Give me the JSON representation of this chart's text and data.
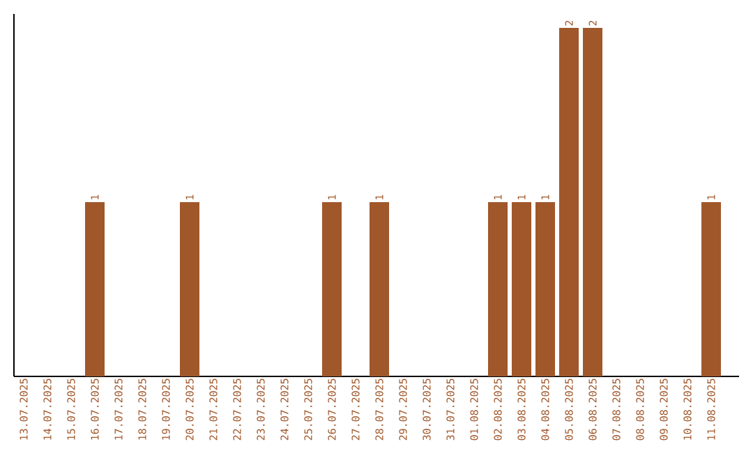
{
  "chart_data": {
    "type": "bar",
    "categories": [
      "13.07.2025",
      "14.07.2025",
      "15.07.2025",
      "16.07.2025",
      "17.07.2025",
      "18.07.2025",
      "19.07.2025",
      "20.07.2025",
      "21.07.2025",
      "22.07.2025",
      "23.07.2025",
      "24.07.2025",
      "25.07.2025",
      "26.07.2025",
      "27.07.2025",
      "28.07.2025",
      "29.07.2025",
      "30.07.2025",
      "31.07.2025",
      "01.08.2025",
      "02.08.2025",
      "03.08.2025",
      "04.08.2025",
      "05.08.2025",
      "06.08.2025",
      "07.08.2025",
      "08.08.2025",
      "09.08.2025",
      "10.08.2025",
      "11.08.2025"
    ],
    "values": [
      0,
      0,
      0,
      1,
      0,
      0,
      0,
      1,
      0,
      0,
      0,
      0,
      0,
      1,
      0,
      1,
      0,
      0,
      0,
      0,
      1,
      1,
      1,
      2,
      2,
      0,
      0,
      0,
      0,
      1
    ],
    "value_labels": [
      null,
      null,
      null,
      "1",
      null,
      null,
      null,
      "1",
      null,
      null,
      null,
      null,
      null,
      "1",
      null,
      "1",
      null,
      null,
      null,
      null,
      "1",
      "1",
      "1",
      "2",
      "2",
      null,
      null,
      null,
      null,
      "1"
    ],
    "color": "#a0572a",
    "ylim": [
      0,
      2.08
    ],
    "tick_labels": "x",
    "grid": false
  }
}
